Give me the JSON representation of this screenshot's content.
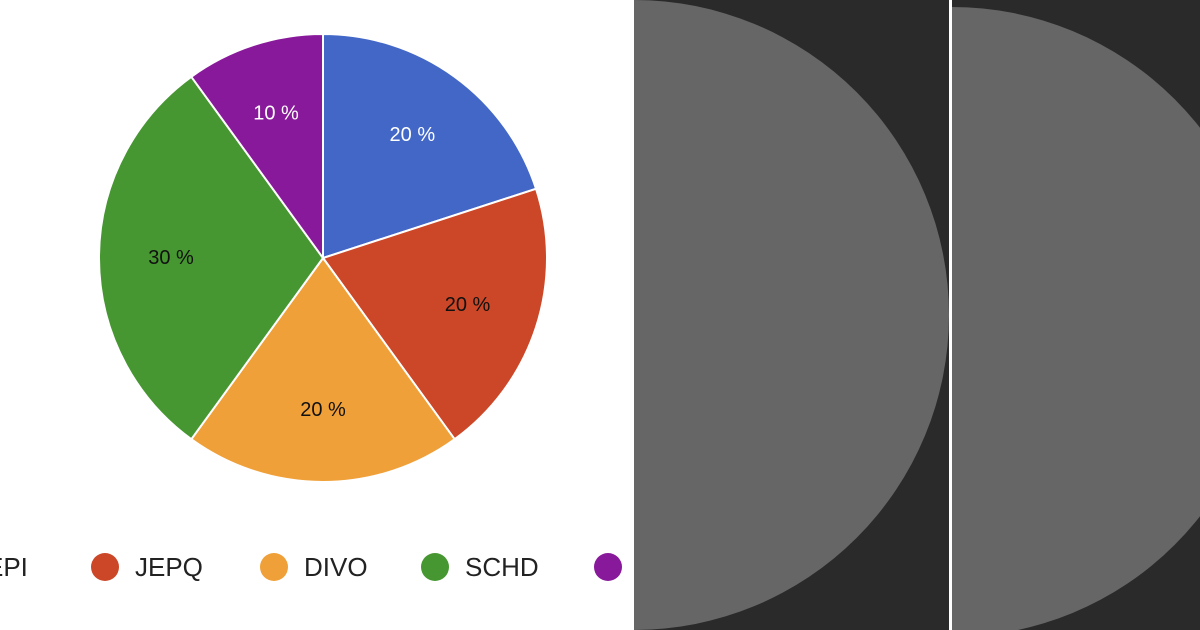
{
  "chart_data": {
    "type": "pie",
    "slices": [
      {
        "label": "",
        "value": 20,
        "value_label": "20 %",
        "color": "#4267c7",
        "label_color": "#ffffff"
      },
      {
        "label": "JEPQ",
        "value": 20,
        "value_label": "20 %",
        "color": "#cc4727",
        "label_color": "#111111"
      },
      {
        "label": "DIVO",
        "value": 20,
        "value_label": "20 %",
        "color": "#f0a038",
        "label_color": "#111111"
      },
      {
        "label": "SCHD",
        "value": 30,
        "value_label": "30 %",
        "color": "#469631",
        "label_color": "#111111"
      },
      {
        "label": "",
        "value": 10,
        "value_label": "10 %",
        "color": "#88199a",
        "label_color": "#ffffff"
      }
    ],
    "legend": {
      "placement": "bottom",
      "items": [
        {
          "label": "EPI",
          "color": "#4267c7"
        },
        {
          "label": "JEPQ",
          "color": "#cc4727"
        },
        {
          "label": "DIVO",
          "color": "#f0a038"
        },
        {
          "label": "SCHD",
          "color": "#469631"
        },
        {
          "label": "",
          "color": "#88199a"
        }
      ]
    },
    "title": ""
  },
  "theme": {
    "dark_panel": "#2a2a2a",
    "disc": "#666666",
    "slice_border": "#ffffff"
  }
}
